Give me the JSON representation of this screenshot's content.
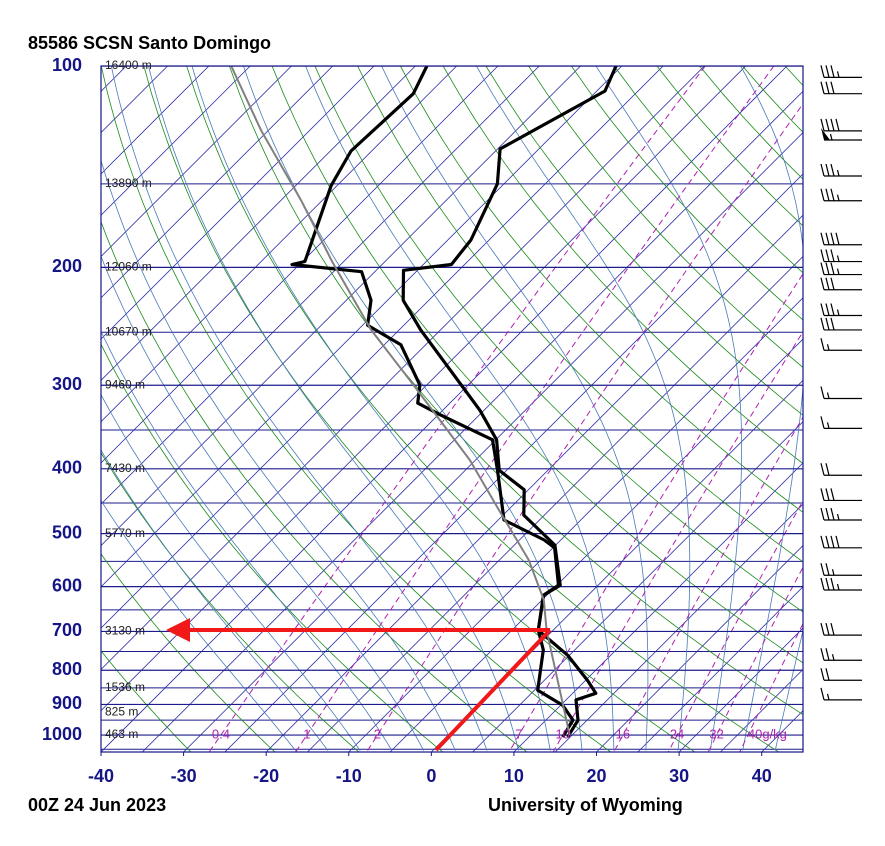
{
  "chart_data": {
    "type": "skewt",
    "title": "85586 SCSN Santo Domingo",
    "date": "00Z 24 Jun 2023",
    "source": "University of Wyoming",
    "xlim": [
      -40,
      45
    ],
    "xticks": [
      -40,
      -30,
      -20,
      -10,
      0,
      10,
      20,
      30,
      40
    ],
    "ylim": [
      100,
      1060
    ],
    "yticks": [
      100,
      200,
      300,
      400,
      500,
      600,
      700,
      800,
      900,
      1000
    ],
    "log_scale_y": true,
    "grid": true,
    "heights": {
      "levels": [
        100,
        150,
        200,
        250,
        300,
        400,
        500,
        700,
        850,
        925,
        1000
      ],
      "labels": [
        "16400 m",
        "13890 m",
        "12060 m",
        "10670 m",
        "9460 m",
        "7430 m",
        "5770 m",
        "3130 m",
        "1536 m",
        "825 m",
        "463 m"
      ]
    },
    "mixing_ratio_ticks": [
      0.4,
      1,
      2,
      7,
      10,
      16,
      24,
      32,
      {
        "value": 40,
        "label": "40g/kg"
      }
    ],
    "series": [
      {
        "color": "#000000",
        "pressure": [
          100,
          109,
          133,
          150,
          182,
          198,
          202,
          224,
          248,
          327,
          362,
          402,
          430,
          469,
          520,
          597,
          618,
          697,
          760,
          828,
          866,
          886,
          950,
          1007
        ],
        "values": [
          -60.7,
          -59.0,
          -64.7,
          -60.8,
          -57.2,
          -56.6,
          -61.7,
          -58.1,
          -52.4,
          -35.5,
          -29.9,
          -25.9,
          -20.5,
          -17.5,
          -10.1,
          -4.6,
          -5.4,
          -1.8,
          4.8,
          10.2,
          12.8,
          11.2,
          13.9,
          14.7
        ]
      },
      {
        "color": "#000000",
        "pressure": [
          100,
          110,
          134,
          151,
          196,
          198,
          203,
          224,
          244,
          261,
          300,
          319,
          332,
          362,
          402,
          477,
          511,
          525,
          597,
          618,
          697,
          746,
          857,
          902,
          950,
          1007
        ],
        "values": [
          -83.6,
          -81.9,
          -82.5,
          -80.7,
          -74.7,
          -75.9,
          -66.6,
          -62.0,
          -59.4,
          -53.0,
          -45.8,
          -43.9,
          -39.8,
          -30.4,
          -26.1,
          -19.3,
          -12.0,
          -9.8,
          -4.8,
          -5.4,
          -1.8,
          1.2,
          5.4,
          10.2,
          13.3,
          14.1
        ]
      },
      {
        "color": "#808080",
        "pressure": [
          100,
          125,
          159,
          196,
          248,
          295,
          338,
          388,
          461,
          548,
          628,
          697,
          828,
          1000
        ],
        "values": [
          -107.3,
          -95.8,
          -82.5,
          -71.4,
          -58.4,
          -47.6,
          -39.2,
          -30.7,
          -21.1,
          -11.4,
          -4.8,
          -0.8,
          6.6,
          14.7
        ]
      }
    ],
    "wind": {
      "pressure": [
        104,
        110,
        125,
        129,
        146,
        159,
        185,
        196,
        205,
        216,
        236,
        248,
        266,
        314,
        348,
        409,
        446,
        477,
        525,
        577,
        607,
        709,
        773,
        828,
        886
      ],
      "speed": [
        35,
        30,
        40,
        55,
        35,
        35,
        40,
        35,
        35,
        30,
        35,
        30,
        15,
        15,
        15,
        20,
        30,
        35,
        40,
        25,
        35,
        30,
        25,
        20,
        15
      ]
    }
  }
}
